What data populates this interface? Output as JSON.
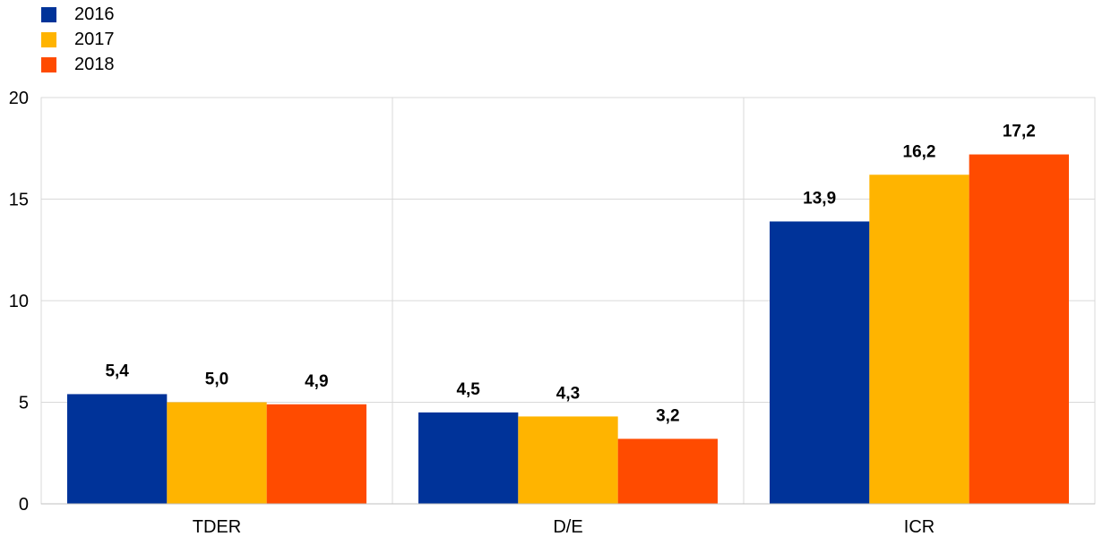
{
  "chart_data": {
    "type": "bar",
    "categories": [
      "TDER",
      "D/E",
      "ICR"
    ],
    "series": [
      {
        "name": "2016",
        "color": "#003399",
        "values": [
          5.4,
          4.5,
          13.9
        ],
        "labels": [
          "5,4",
          "4,5",
          "13,9"
        ]
      },
      {
        "name": "2017",
        "color": "#FFB400",
        "values": [
          5.0,
          4.3,
          16.2
        ],
        "labels": [
          "5,0",
          "4,3",
          "16,2"
        ]
      },
      {
        "name": "2018",
        "color": "#FF4B00",
        "values": [
          4.9,
          3.2,
          17.2
        ],
        "labels": [
          "4,9",
          "3,2",
          "17,2"
        ]
      }
    ],
    "ylim": [
      0,
      20
    ],
    "yticks": [
      0,
      5,
      10,
      15,
      20
    ],
    "ytick_labels": [
      "0",
      "5",
      "10",
      "15",
      "20"
    ],
    "grid": true,
    "legend": "top-left",
    "title": "",
    "xlabel": "",
    "ylabel": ""
  }
}
